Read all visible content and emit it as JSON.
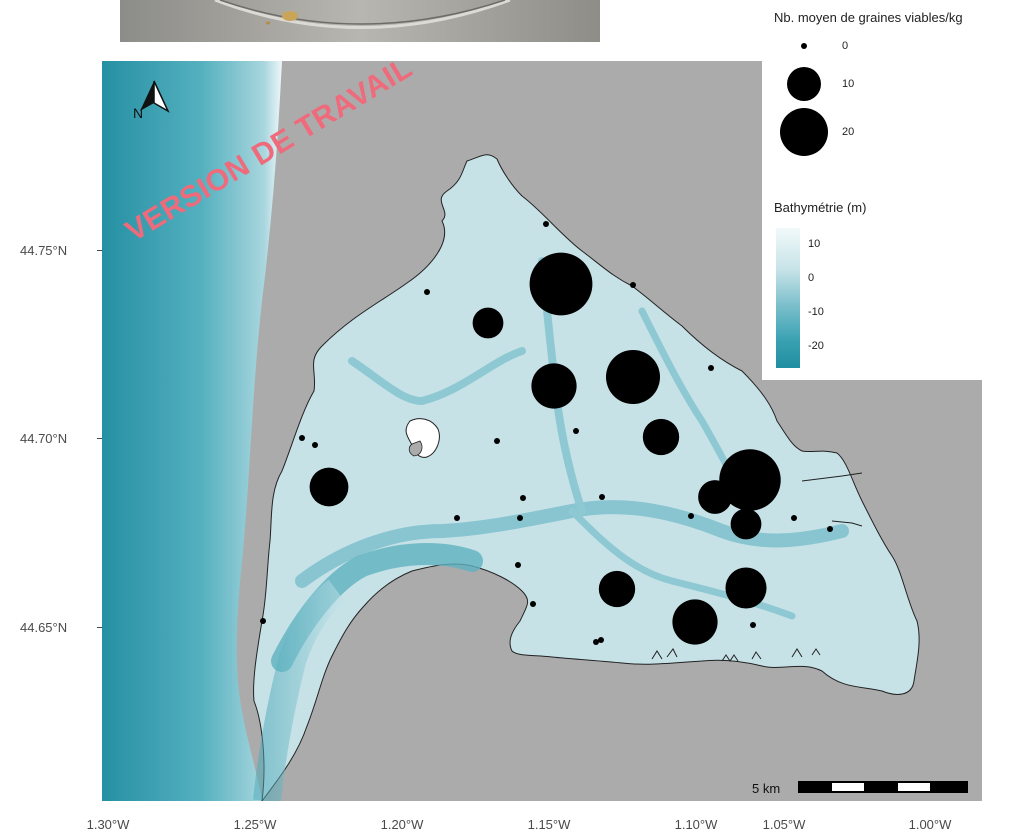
{
  "watermark": "VERSION DE TRAVAIL",
  "north_arrow": {
    "letter": "N",
    "icon": "north-arrow-icon"
  },
  "legend_size": {
    "title": "Nb. moyen de graines viables/kg",
    "entries": [
      {
        "label": "0",
        "value": 0
      },
      {
        "label": "10",
        "value": 10
      },
      {
        "label": "20",
        "value": 20
      }
    ]
  },
  "legend_bathy": {
    "title": "Bathymétrie (m)",
    "ticks": [
      "10",
      "0",
      "-10",
      "-20"
    ],
    "range": [
      -25,
      15
    ]
  },
  "scale_bar": {
    "label": "5 km"
  },
  "axes": {
    "y_ticks": [
      "44.75°N",
      "44.70°N",
      "44.65°N"
    ],
    "x_ticks": [
      "1.30°W",
      "1.25°W",
      "1.20°W",
      "1.15°W",
      "1.10°W",
      "1.05°W",
      "1.00°W"
    ]
  },
  "colors": {
    "land": "#ababab",
    "basin_water": "#c8e3e8",
    "ocean_deep": "#2a9aab",
    "channel": "#6eb9c6",
    "points": "#000000",
    "watermark": "#ef6a7b"
  },
  "stations": [
    {
      "value": 21
    },
    {
      "value": 1
    },
    {
      "value": 1
    },
    {
      "value": 1
    },
    {
      "value": 4
    },
    {
      "value": 1
    },
    {
      "value": 10
    },
    {
      "value": 15
    },
    {
      "value": 1
    },
    {
      "value": 1
    },
    {
      "value": 6
    },
    {
      "value": 1
    },
    {
      "value": 1
    },
    {
      "value": 5
    },
    {
      "value": 1
    },
    {
      "value": 1
    },
    {
      "value": 1
    },
    {
      "value": 20
    },
    {
      "value": 1
    },
    {
      "value": 4
    },
    {
      "value": 1
    },
    {
      "value": 7
    },
    {
      "value": 1
    },
    {
      "value": 1
    },
    {
      "value": 1
    },
    {
      "value": 6
    },
    {
      "value": 1
    },
    {
      "value": 1
    },
    {
      "value": 8
    },
    {
      "value": 10
    },
    {
      "value": 1
    },
    {
      "value": 1
    },
    {
      "value": 1
    },
    {
      "value": 1
    }
  ]
}
